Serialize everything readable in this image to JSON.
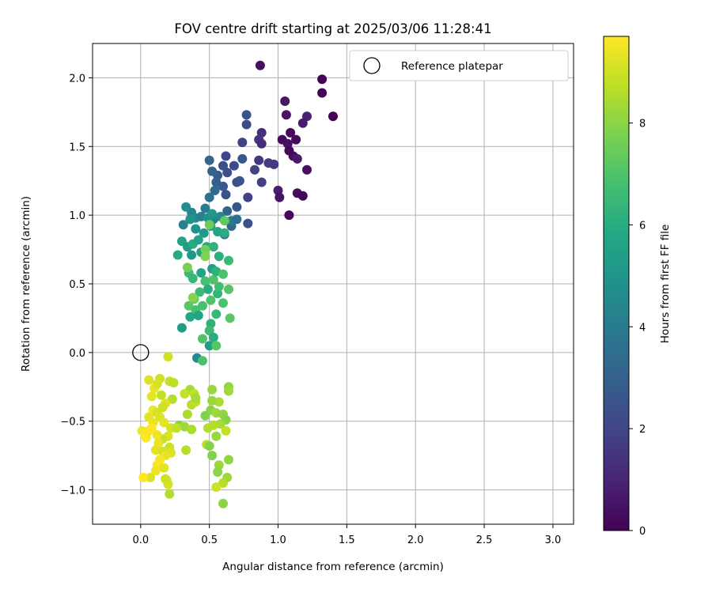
{
  "chart_data": {
    "type": "scatter",
    "title": "FOV centre drift starting at 2025/03/06 11:28:41",
    "xlabel": "Angular distance from reference (arcmin)",
    "ylabel": "Rotation from reference (arcmin)",
    "xlim": [
      -0.35,
      3.15
    ],
    "ylim": [
      -1.25,
      2.25
    ],
    "xticks": [
      "0.0",
      "0.5",
      "1.0",
      "1.5",
      "2.0",
      "2.5",
      "3.0"
    ],
    "yticks": [
      "−1.0",
      "−0.5",
      "0.0",
      "0.5",
      "1.0",
      "1.5",
      "2.0"
    ],
    "grid": true,
    "legend": {
      "position": "top-right",
      "entries": [
        "Reference platepar"
      ]
    },
    "reference_point": {
      "x": 0.0,
      "y": 0.0
    },
    "colorbar": {
      "label": "Hours from first FF file",
      "colormap": "viridis",
      "range": [
        0,
        9.7
      ],
      "ticks": [
        "0",
        "2",
        "4",
        "6",
        "8"
      ]
    },
    "series": [
      {
        "points": [
          [
            0.87,
            2.09,
            0.4
          ],
          [
            1.32,
            1.99,
            0.1
          ],
          [
            1.32,
            1.89,
            0.1
          ],
          [
            1.4,
            1.72,
            0.0
          ],
          [
            1.05,
            1.83,
            0.6
          ],
          [
            1.06,
            1.73,
            0.5
          ],
          [
            1.21,
            1.72,
            0.9
          ],
          [
            1.18,
            1.67,
            0.8
          ],
          [
            1.09,
            1.6,
            0.2
          ],
          [
            1.13,
            1.55,
            0.3
          ],
          [
            1.03,
            1.55,
            0.3
          ],
          [
            1.07,
            1.52,
            0.4
          ],
          [
            1.11,
            1.43,
            0.4
          ],
          [
            1.08,
            1.47,
            0.2
          ],
          [
            1.14,
            1.41,
            0.7
          ],
          [
            1.21,
            1.33,
            0.4
          ],
          [
            1.0,
            1.18,
            0.8
          ],
          [
            1.01,
            1.13,
            0.5
          ],
          [
            1.14,
            1.16,
            0.3
          ],
          [
            1.18,
            1.14,
            0.1
          ],
          [
            1.08,
            1.0,
            0.2
          ],
          [
            0.88,
            1.6,
            1.3
          ],
          [
            0.86,
            1.55,
            1.5
          ],
          [
            0.88,
            1.52,
            1.2
          ],
          [
            0.77,
            1.73,
            2.5
          ],
          [
            0.77,
            1.66,
            2.2
          ],
          [
            0.93,
            1.38,
            1.8
          ],
          [
            0.97,
            1.37,
            1.6
          ],
          [
            0.86,
            1.4,
            1.6
          ],
          [
            0.83,
            1.33,
            1.9
          ],
          [
            0.88,
            1.24,
            1.8
          ],
          [
            0.74,
            1.53,
            1.9
          ],
          [
            0.62,
            1.43,
            2.0
          ],
          [
            0.68,
            1.36,
            2.2
          ],
          [
            0.6,
            1.36,
            2.4
          ],
          [
            0.63,
            1.31,
            2.3
          ],
          [
            0.74,
            1.41,
            2.7
          ],
          [
            0.7,
            1.24,
            2.3
          ],
          [
            0.78,
            1.13,
            1.9
          ],
          [
            0.72,
            1.25,
            2.5
          ],
          [
            0.56,
            1.29,
            2.8
          ],
          [
            0.5,
            1.4,
            3.2
          ],
          [
            0.52,
            1.32,
            3.1
          ],
          [
            0.55,
            1.24,
            2.9
          ],
          [
            0.6,
            1.21,
            2.7
          ],
          [
            0.62,
            1.15,
            2.4
          ],
          [
            0.54,
            1.18,
            3.3
          ],
          [
            0.5,
            1.13,
            3.6
          ],
          [
            0.7,
            1.06,
            2.6
          ],
          [
            0.63,
            1.03,
            3.1
          ],
          [
            0.47,
            1.05,
            4.0
          ],
          [
            0.53,
            0.97,
            4.3
          ],
          [
            0.58,
            0.99,
            4.6
          ],
          [
            0.66,
            0.92,
            3.3
          ],
          [
            0.61,
            0.86,
            3.0
          ],
          [
            0.78,
            0.94,
            2.4
          ],
          [
            0.66,
            0.96,
            4.0
          ],
          [
            0.7,
            0.97,
            3.6
          ],
          [
            0.37,
            1.02,
            4.4
          ],
          [
            0.33,
            1.06,
            4.8
          ],
          [
            0.4,
            0.98,
            4.6
          ],
          [
            0.44,
            0.99,
            4.2
          ],
          [
            0.49,
            0.98,
            4.9
          ],
          [
            0.52,
            1.01,
            5.1
          ],
          [
            0.36,
            0.97,
            5.0
          ],
          [
            0.31,
            0.93,
            4.3
          ],
          [
            0.4,
            0.9,
            4.9
          ],
          [
            0.46,
            0.87,
            5.2
          ],
          [
            0.51,
            0.92,
            5.5
          ],
          [
            0.56,
            0.88,
            5.7
          ],
          [
            0.61,
            0.87,
            6.0
          ],
          [
            0.3,
            0.81,
            5.6
          ],
          [
            0.34,
            0.77,
            5.3
          ],
          [
            0.38,
            0.79,
            5.9
          ],
          [
            0.42,
            0.82,
            5.6
          ],
          [
            0.27,
            0.71,
            5.9
          ],
          [
            0.37,
            0.71,
            5.2
          ],
          [
            0.44,
            0.73,
            5.5
          ],
          [
            0.48,
            0.77,
            5.8
          ],
          [
            0.53,
            0.77,
            6.3
          ],
          [
            0.57,
            0.7,
            6.1
          ],
          [
            0.64,
            0.67,
            6.5
          ],
          [
            0.52,
            0.61,
            5.4
          ],
          [
            0.44,
            0.58,
            5.7
          ],
          [
            0.35,
            0.58,
            6.6
          ],
          [
            0.38,
            0.54,
            6.4
          ],
          [
            0.47,
            0.52,
            6.8
          ],
          [
            0.53,
            0.53,
            7.0
          ],
          [
            0.55,
            0.59,
            6.2
          ],
          [
            0.6,
            0.57,
            6.9
          ],
          [
            0.49,
            0.46,
            6.0
          ],
          [
            0.56,
            0.43,
            6.3
          ],
          [
            0.57,
            0.48,
            6.7
          ],
          [
            0.64,
            0.46,
            7.1
          ],
          [
            0.43,
            0.44,
            6.6
          ],
          [
            0.39,
            0.39,
            7.3
          ],
          [
            0.35,
            0.34,
            7.2
          ],
          [
            0.4,
            0.31,
            6.9
          ],
          [
            0.45,
            0.34,
            6.8
          ],
          [
            0.51,
            0.38,
            7.0
          ],
          [
            0.6,
            0.36,
            6.9
          ],
          [
            0.55,
            0.28,
            6.5
          ],
          [
            0.65,
            0.25,
            7.2
          ],
          [
            0.36,
            0.26,
            5.8
          ],
          [
            0.42,
            0.27,
            5.6
          ],
          [
            0.51,
            0.21,
            6.2
          ],
          [
            0.5,
            0.16,
            6.6
          ],
          [
            0.3,
            0.18,
            5.4
          ],
          [
            0.53,
            0.11,
            6.0
          ],
          [
            0.5,
            0.05,
            5.3
          ],
          [
            0.55,
            0.05,
            7.1
          ],
          [
            0.41,
            -0.04,
            4.6
          ],
          [
            0.45,
            -0.06,
            6.9
          ],
          [
            0.45,
            0.1,
            7.0
          ],
          [
            0.61,
            0.96,
            7.3
          ],
          [
            0.5,
            0.93,
            7.5
          ],
          [
            0.47,
            0.75,
            7.6
          ],
          [
            0.47,
            0.7,
            7.8
          ],
          [
            0.34,
            0.62,
            7.7
          ],
          [
            0.38,
            0.4,
            7.9
          ],
          [
            0.2,
            -0.03,
            9.0
          ],
          [
            0.36,
            -0.27,
            8.4
          ],
          [
            0.39,
            -0.3,
            8.8
          ],
          [
            0.52,
            -0.27,
            8.2
          ],
          [
            0.57,
            -0.36,
            8.5
          ],
          [
            0.52,
            -0.35,
            8.2
          ],
          [
            0.64,
            -0.25,
            8.1
          ],
          [
            0.64,
            -0.28,
            8.3
          ],
          [
            0.47,
            -0.46,
            7.8
          ],
          [
            0.51,
            -0.42,
            8.0
          ],
          [
            0.55,
            -0.44,
            8.3
          ],
          [
            0.6,
            -0.45,
            8.1
          ],
          [
            0.62,
            -0.49,
            7.9
          ],
          [
            0.58,
            -0.52,
            8.4
          ],
          [
            0.53,
            -0.53,
            8.6
          ],
          [
            0.49,
            -0.55,
            8.6
          ],
          [
            0.55,
            -0.61,
            8.2
          ],
          [
            0.62,
            -0.57,
            8.8
          ],
          [
            0.48,
            -0.67,
            8.7
          ],
          [
            0.5,
            -0.68,
            7.9
          ],
          [
            0.52,
            -0.75,
            7.8
          ],
          [
            0.57,
            -0.82,
            8.2
          ],
          [
            0.56,
            -0.87,
            8.0
          ],
          [
            0.64,
            -0.78,
            8.1
          ],
          [
            0.63,
            -0.91,
            8.3
          ],
          [
            0.6,
            -0.95,
            8.6
          ],
          [
            0.55,
            -0.98,
            9.0
          ],
          [
            0.6,
            -1.1,
            8.0
          ],
          [
            0.32,
            -0.3,
            8.8
          ],
          [
            0.34,
            -0.45,
            8.5
          ],
          [
            0.37,
            -0.38,
            8.6
          ],
          [
            0.4,
            -0.36,
            8.7
          ],
          [
            0.28,
            -0.53,
            7.9
          ],
          [
            0.32,
            -0.54,
            8.3
          ],
          [
            0.37,
            -0.56,
            8.5
          ],
          [
            0.33,
            -0.71,
            8.6
          ],
          [
            0.4,
            -0.33,
            8.4
          ],
          [
            0.06,
            -0.2,
            9.2
          ],
          [
            0.08,
            -0.32,
            9.3
          ],
          [
            0.1,
            -0.26,
            9.4
          ],
          [
            0.14,
            -0.19,
            9.0
          ],
          [
            0.12,
            -0.23,
            9.1
          ],
          [
            0.15,
            -0.31,
            8.8
          ],
          [
            0.21,
            -0.21,
            8.9
          ],
          [
            0.24,
            -0.22,
            8.7
          ],
          [
            0.23,
            -0.34,
            8.6
          ],
          [
            0.18,
            -0.37,
            9.2
          ],
          [
            0.06,
            -0.47,
            9.3
          ],
          [
            0.09,
            -0.42,
            9.5
          ],
          [
            0.12,
            -0.44,
            9.1
          ],
          [
            0.09,
            -0.51,
            9.4
          ],
          [
            0.14,
            -0.47,
            9.2
          ],
          [
            0.16,
            -0.4,
            9.0
          ],
          [
            0.17,
            -0.51,
            9.3
          ],
          [
            0.22,
            -0.55,
            9.1
          ],
          [
            0.26,
            -0.55,
            8.8
          ],
          [
            0.2,
            -0.61,
            9.2
          ],
          [
            0.16,
            -0.63,
            8.9
          ],
          [
            0.13,
            -0.66,
            9.4
          ],
          [
            0.11,
            -0.71,
            9.3
          ],
          [
            0.16,
            -0.72,
            9.1
          ],
          [
            0.21,
            -0.69,
            9.0
          ],
          [
            0.22,
            -0.73,
            9.2
          ],
          [
            0.18,
            -0.75,
            9.4
          ],
          [
            0.14,
            -0.78,
            9.6
          ],
          [
            0.12,
            -0.82,
            9.6
          ],
          [
            0.11,
            -0.86,
            9.5
          ],
          [
            0.17,
            -0.84,
            9.3
          ],
          [
            0.07,
            -0.91,
            9.2
          ],
          [
            0.01,
            -0.57,
            9.5
          ],
          [
            0.03,
            -0.6,
            9.6
          ],
          [
            0.04,
            -0.62,
            9.7
          ],
          [
            0.06,
            -0.57,
            9.6
          ],
          [
            0.08,
            -0.55,
            9.7
          ],
          [
            0.12,
            -0.6,
            9.5
          ],
          [
            0.19,
            -0.93,
            9.4
          ],
          [
            0.2,
            -0.96,
            9.1
          ],
          [
            0.21,
            -1.03,
            8.6
          ],
          [
            0.02,
            -0.91,
            9.7
          ],
          [
            0.18,
            -0.92,
            9.0
          ]
        ]
      }
    ]
  }
}
